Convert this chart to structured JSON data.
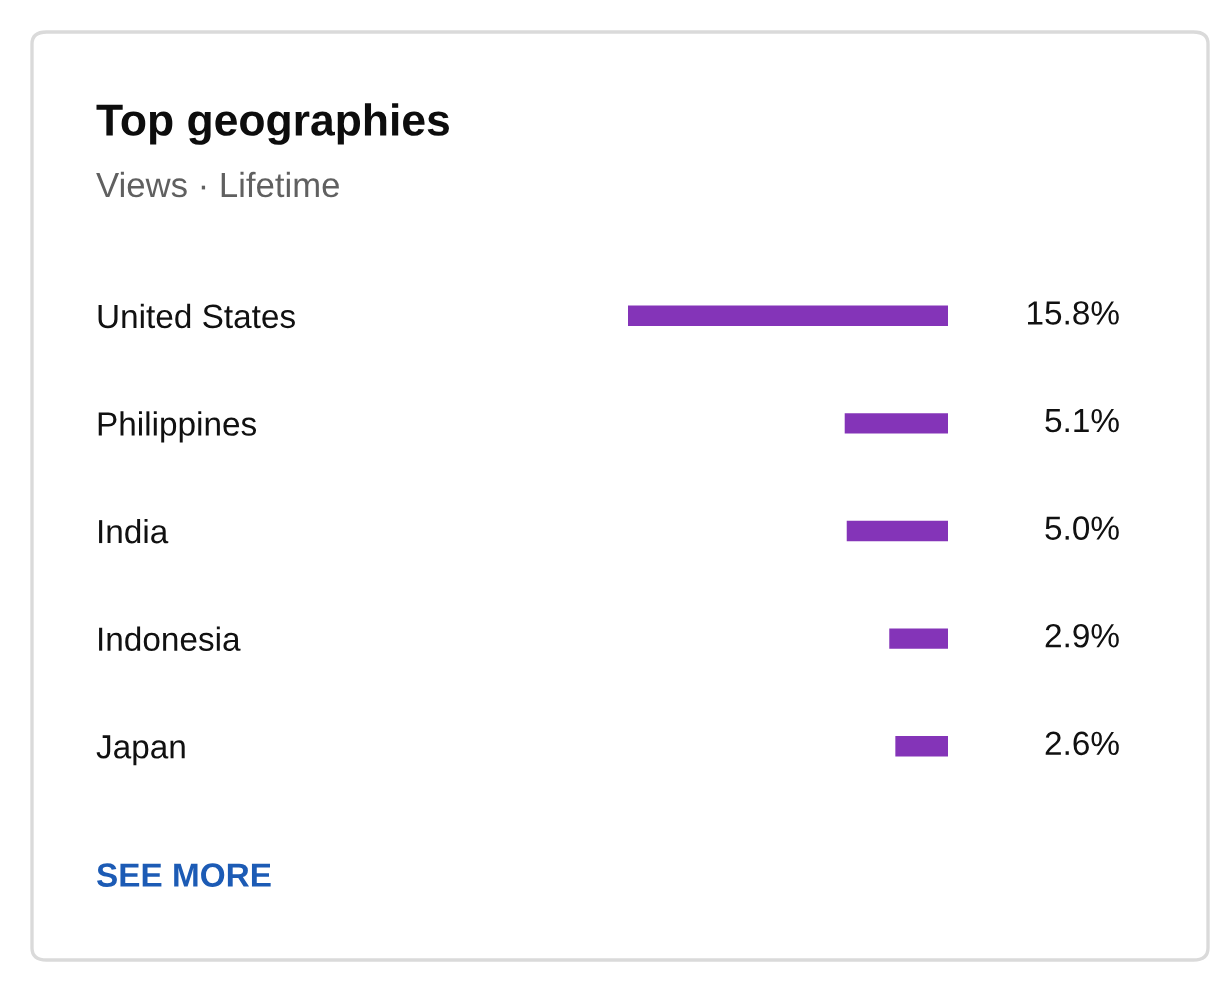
{
  "chart_data": {
    "type": "bar",
    "orientation": "horizontal",
    "title": "Top geographies",
    "subtitle": "Views · Lifetime",
    "categories": [
      "United States",
      "Philippines",
      "India",
      "Indonesia",
      "Japan"
    ],
    "values": [
      15.8,
      5.1,
      5.0,
      2.9,
      2.6
    ],
    "value_labels": [
      "15.8%",
      "5.1%",
      "5.0%",
      "2.9%",
      "2.6%"
    ],
    "color": "#8434b8",
    "xlim": [
      15.8,
      0
    ],
    "tick_labels": "y",
    "annotations": [
      "SEE MORE"
    ]
  }
}
